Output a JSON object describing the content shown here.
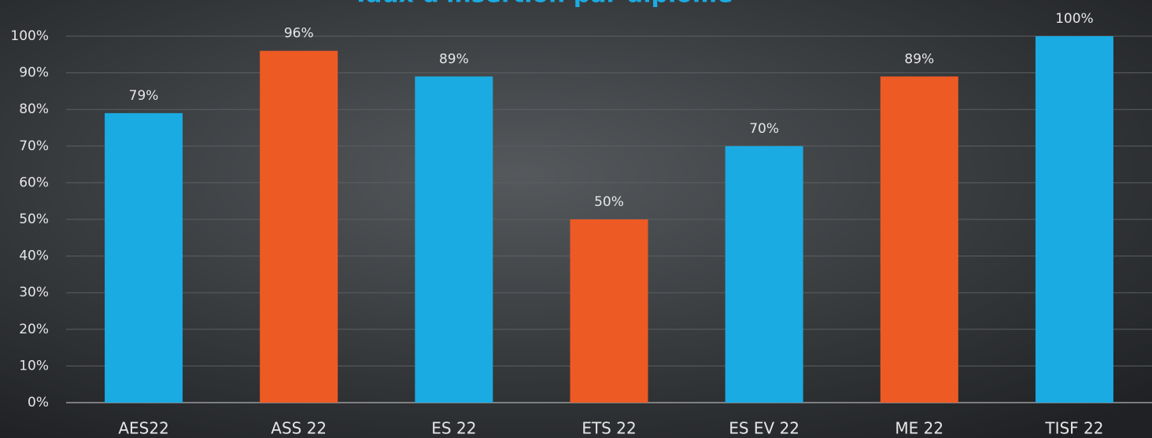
{
  "chart_data": {
    "type": "bar",
    "title": "Taux d'insertion par diplôme",
    "categories": [
      "AES22",
      "ASS 22",
      "ES 22",
      "ETS 22",
      "ES EV 22",
      "ME 22",
      "TISF 22"
    ],
    "values": [
      79,
      96,
      89,
      50,
      70,
      89,
      100
    ],
    "value_labels": [
      "79%",
      "96%",
      "89%",
      "50%",
      "70%",
      "89%",
      "100%"
    ],
    "colors": [
      "#1aabe2",
      "#ee5a24",
      "#1aabe2",
      "#ee5a24",
      "#1aabe2",
      "#ee5a24",
      "#1aabe2"
    ],
    "ylim": [
      0,
      100
    ],
    "yticks": [
      {
        "value": 0,
        "label": "0%"
      },
      {
        "value": 10,
        "label": "10%"
      },
      {
        "value": 20,
        "label": "20%"
      },
      {
        "value": 30,
        "label": "30%"
      },
      {
        "value": 40,
        "label": "40%"
      },
      {
        "value": 50,
        "label": "50%"
      },
      {
        "value": 60,
        "label": "60%"
      },
      {
        "value": 70,
        "label": "70%"
      },
      {
        "value": 80,
        "label": "80%"
      },
      {
        "value": 90,
        "label": "90%"
      },
      {
        "value": 100,
        "label": "100%"
      }
    ],
    "grid": true
  }
}
